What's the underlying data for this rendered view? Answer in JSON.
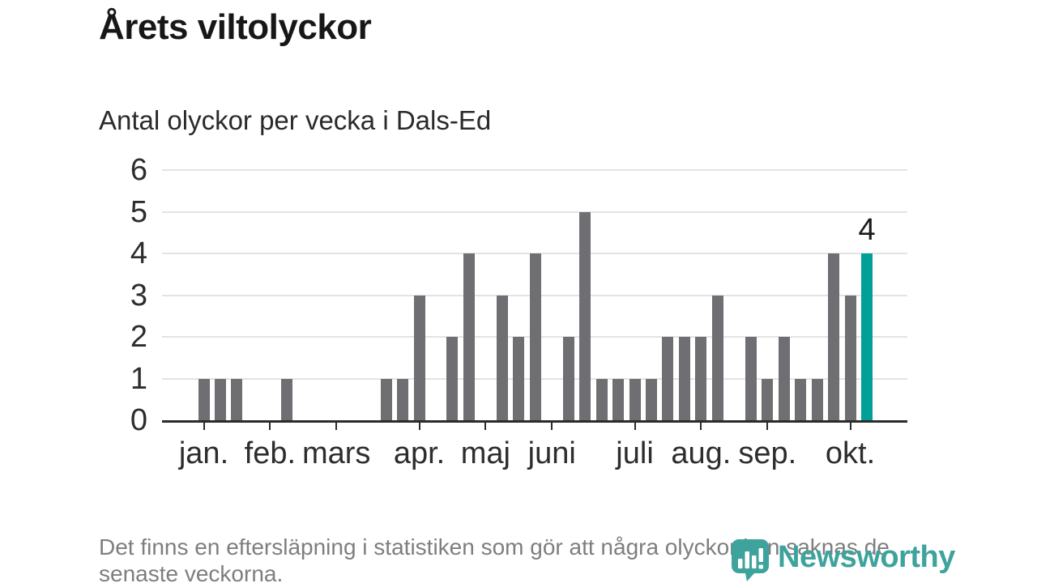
{
  "chart_data": {
    "type": "bar",
    "title": "Årets viltolyckor",
    "subtitle": "Antal olyckor per vecka i Dals-Ed",
    "x_unit": "vecka",
    "ylim": [
      0,
      6
    ],
    "yticks": [
      0,
      1,
      2,
      3,
      4,
      5,
      6
    ],
    "grid": true,
    "legend_position": "none",
    "values": [
      1,
      1,
      1,
      0,
      0,
      1,
      0,
      0,
      0,
      0,
      0,
      1,
      1,
      3,
      0,
      2,
      4,
      0,
      3,
      2,
      4,
      0,
      2,
      5,
      1,
      1,
      1,
      1,
      2,
      2,
      2,
      3,
      0,
      2,
      1,
      2,
      1,
      1,
      4,
      3,
      4
    ],
    "month_ticks": [
      {
        "label": "jan.",
        "week_index": 0
      },
      {
        "label": "feb.",
        "week_index": 4
      },
      {
        "label": "mars",
        "week_index": 8
      },
      {
        "label": "apr.",
        "week_index": 13
      },
      {
        "label": "maj",
        "week_index": 17
      },
      {
        "label": "juni",
        "week_index": 21
      },
      {
        "label": "juli",
        "week_index": 26
      },
      {
        "label": "aug.",
        "week_index": 30
      },
      {
        "label": "sep.",
        "week_index": 34
      },
      {
        "label": "okt.",
        "week_index": 39
      }
    ],
    "highlight_index": 40,
    "highlight_label": "4",
    "colors": {
      "bar": "#6e6e73",
      "highlight": "#00a099",
      "grid": "#e3e3e3",
      "axis": "#2b2b2b",
      "logo": "#3da39c"
    }
  },
  "footer": {
    "note": "Det finns en eftersläpning i statistiken som gör att några olyckor kan saknas de senaste veckorna.",
    "logo_text": "Newsworthy"
  }
}
